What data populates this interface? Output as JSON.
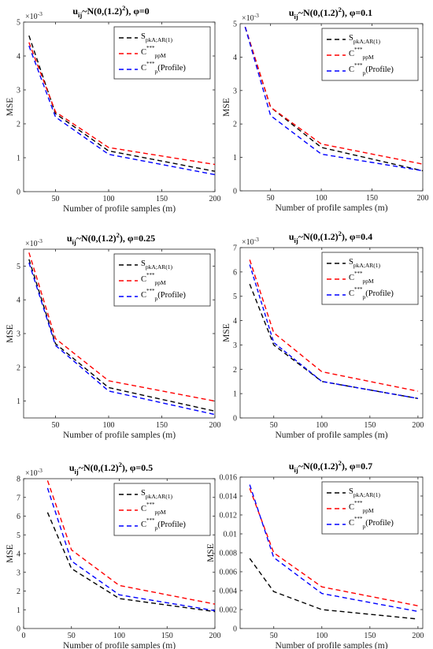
{
  "colors": {
    "series_1": "#000000",
    "series_2": "#ff0000",
    "series_3": "#0000ff"
  },
  "chart_data": [
    {
      "type": "line",
      "title": {
        "base": "u",
        "sub": "ij",
        "mid": "~N(0,(1.2)",
        "sup": "2",
        "end": "), φ=0"
      },
      "xlabel": "Number of profile samples (m)",
      "ylabel": "MSE",
      "multiplier": {
        "base": "×10",
        "exp": "-3"
      },
      "xlim": [
        20,
        200
      ],
      "ylim": [
        0,
        5
      ],
      "xticks": [
        "50",
        "100",
        "150",
        "200"
      ],
      "xtick_values": [
        50,
        100,
        150,
        200
      ],
      "yticks": [
        "0",
        "1",
        "2",
        "3",
        "4",
        "5"
      ],
      "ytick_values": [
        0,
        1,
        2,
        3,
        4,
        5
      ],
      "legend": "top-right",
      "x": [
        25,
        50,
        100,
        200
      ],
      "series": [
        {
          "legend": {
            "base": "S",
            "sub": "pkA;AR(1)",
            "sup": "",
            "suffix": ""
          },
          "color": "#000000",
          "values": [
            4.6,
            2.3,
            1.2,
            0.6
          ]
        },
        {
          "legend": {
            "base": "C",
            "sub": "ppM",
            "sup": "***",
            "suffix": ""
          },
          "color": "#ff0000",
          "values": [
            4.4,
            2.35,
            1.3,
            0.8
          ]
        },
        {
          "legend": {
            "base": "C",
            "sub": "p",
            "sup": "***",
            "suffix": "(Profile)"
          },
          "color": "#0000ff",
          "values": [
            4.3,
            2.2,
            1.1,
            0.5
          ]
        }
      ]
    },
    {
      "type": "line",
      "title": {
        "base": "u",
        "sub": "ij",
        "mid": "~N(0,(1.2)",
        "sup": "2",
        "end": "), φ=0.1"
      },
      "xlabel": "Number of profile samples (m)",
      "ylabel": "MSE",
      "multiplier": {
        "base": "×10",
        "exp": "-3"
      },
      "xlim": [
        20,
        200
      ],
      "ylim": [
        0,
        5
      ],
      "xticks": [
        "50",
        "100",
        "150",
        "200"
      ],
      "xtick_values": [
        50,
        100,
        150,
        200
      ],
      "yticks": [
        "0",
        "1",
        "2",
        "3",
        "4",
        "5"
      ],
      "ytick_values": [
        0,
        1,
        2,
        3,
        4,
        5
      ],
      "legend": "top-right",
      "x": [
        25,
        50,
        100,
        200
      ],
      "series": [
        {
          "legend": {
            "base": "S",
            "sub": "pkA;AR(1)",
            "sup": "",
            "suffix": ""
          },
          "color": "#000000",
          "values": [
            4.9,
            2.5,
            1.3,
            0.6
          ]
        },
        {
          "legend": {
            "base": "C",
            "sub": "ppM",
            "sup": "***",
            "suffix": ""
          },
          "color": "#ff0000",
          "values": [
            4.9,
            2.5,
            1.4,
            0.8
          ]
        },
        {
          "legend": {
            "base": "C",
            "sub": "p",
            "sup": "***",
            "suffix": "(Profile)"
          },
          "color": "#0000ff",
          "values": [
            4.9,
            2.25,
            1.1,
            0.6
          ]
        }
      ]
    },
    {
      "type": "line",
      "title": {
        "base": "u",
        "sub": "ij",
        "mid": "~N(0,(1.2)",
        "sup": "2",
        "end": "), φ=0.25"
      },
      "xlabel": "Number of profile samples (m)",
      "ylabel": "MSE",
      "multiplier": {
        "base": "×10",
        "exp": "-3"
      },
      "xlim": [
        20,
        200
      ],
      "ylim": [
        0.5,
        5.5
      ],
      "xticks": [
        "50",
        "100",
        "150",
        "200"
      ],
      "xtick_values": [
        50,
        100,
        150,
        200
      ],
      "yticks": [
        "1",
        "2",
        "3",
        "4",
        "5"
      ],
      "ytick_values": [
        1,
        2,
        3,
        4,
        5
      ],
      "legend": "top-right",
      "x": [
        25,
        50,
        100,
        200
      ],
      "series": [
        {
          "legend": {
            "base": "S",
            "sub": "pkA;AR(1)",
            "sup": "",
            "suffix": ""
          },
          "color": "#000000",
          "values": [
            5.2,
            2.7,
            1.4,
            0.7
          ]
        },
        {
          "legend": {
            "base": "C",
            "sub": "ppM",
            "sup": "***",
            "suffix": ""
          },
          "color": "#ff0000",
          "values": [
            5.4,
            2.85,
            1.6,
            1.0
          ]
        },
        {
          "legend": {
            "base": "C",
            "sub": "p",
            "sup": "***",
            "suffix": "(Profile)"
          },
          "color": "#0000ff",
          "values": [
            5.1,
            2.65,
            1.3,
            0.6
          ]
        }
      ]
    },
    {
      "type": "line",
      "title": {
        "base": "u",
        "sub": "ij",
        "mid": "~N(0,(1.2)",
        "sup": "2",
        "end": "), φ=0.4"
      },
      "xlabel": "Number of profile samples (m)",
      "ylabel": "MSE",
      "multiplier": {
        "base": "×10",
        "exp": "-3"
      },
      "xlim": [
        15,
        205
      ],
      "ylim": [
        0,
        7
      ],
      "xticks": [
        "50",
        "100",
        "150",
        "200"
      ],
      "xtick_values": [
        50,
        100,
        150,
        200
      ],
      "yticks": [
        "0",
        "1",
        "2",
        "3",
        "4",
        "5",
        "6",
        "7"
      ],
      "ytick_values": [
        0,
        1,
        2,
        3,
        4,
        5,
        6,
        7
      ],
      "legend": "top-right",
      "x": [
        25,
        50,
        100,
        200
      ],
      "series": [
        {
          "legend": {
            "base": "S",
            "sub": "pkA;AR(1)",
            "sup": "",
            "suffix": ""
          },
          "color": "#000000",
          "values": [
            5.5,
            3.0,
            1.5,
            0.8
          ]
        },
        {
          "legend": {
            "base": "C",
            "sub": "ppM",
            "sup": "***",
            "suffix": ""
          },
          "color": "#ff0000",
          "values": [
            6.5,
            3.5,
            1.9,
            1.1
          ]
        },
        {
          "legend": {
            "base": "C",
            "sub": "p",
            "sup": "***",
            "suffix": "(Profile)"
          },
          "color": "#0000ff",
          "values": [
            6.3,
            3.1,
            1.5,
            0.8
          ]
        }
      ]
    },
    {
      "type": "line",
      "title": {
        "base": "u",
        "sub": "ij",
        "mid": "~N(0,(1.2)",
        "sup": "2",
        "end": "), φ=0.5"
      },
      "xlabel": "Number of profile samples (m)",
      "ylabel": "MSE",
      "multiplier": {
        "base": "×10",
        "exp": "-3"
      },
      "xlim": [
        0,
        200
      ],
      "ylim": [
        0,
        8
      ],
      "xticks": [
        "0",
        "50",
        "100",
        "150",
        "200"
      ],
      "xtick_values": [
        0,
        50,
        100,
        150,
        200
      ],
      "yticks": [
        "0",
        "1",
        "2",
        "3",
        "4",
        "5",
        "6",
        "7",
        "8"
      ],
      "ytick_values": [
        0,
        1,
        2,
        3,
        4,
        5,
        6,
        7,
        8
      ],
      "legend": "top-right",
      "x": [
        25,
        50,
        100,
        200
      ],
      "series": [
        {
          "legend": {
            "base": "S",
            "sub": "pkA;AR(1)",
            "sup": "",
            "suffix": ""
          },
          "color": "#000000",
          "values": [
            6.2,
            3.2,
            1.6,
            0.9
          ]
        },
        {
          "legend": {
            "base": "C",
            "sub": "ppM",
            "sup": "***",
            "suffix": ""
          },
          "color": "#ff0000",
          "values": [
            7.9,
            4.2,
            2.3,
            1.3
          ]
        },
        {
          "legend": {
            "base": "C",
            "sub": "p",
            "sup": "***",
            "suffix": "(Profile)"
          },
          "color": "#0000ff",
          "values": [
            7.5,
            3.6,
            1.8,
            0.95
          ]
        }
      ]
    },
    {
      "type": "line",
      "title": {
        "base": "u",
        "sub": "ij",
        "mid": "~N(0,(1.2)",
        "sup": "2",
        "end": "), φ=0.7"
      },
      "xlabel": "Number of profile samples (m)",
      "ylabel": "MSE",
      "multiplier": null,
      "xlim": [
        15,
        205
      ],
      "ylim": [
        0,
        0.016
      ],
      "xticks": [
        "50",
        "100",
        "150",
        "200"
      ],
      "xtick_values": [
        50,
        100,
        150,
        200
      ],
      "yticks": [
        "0",
        "0.002",
        "0.004",
        "0.006",
        "0.008",
        "0.01",
        "0.012",
        "0.014",
        "0.016"
      ],
      "ytick_values": [
        0,
        0.002,
        0.004,
        0.006,
        0.008,
        0.01,
        0.012,
        0.014,
        0.016
      ],
      "legend": "top-right",
      "x": [
        25,
        50,
        100,
        200
      ],
      "series": [
        {
          "legend": {
            "base": "S",
            "sub": "pkA;AR(1)",
            "sup": "",
            "suffix": ""
          },
          "color": "#000000",
          "values": [
            0.0074,
            0.0039,
            0.002,
            0.001
          ]
        },
        {
          "legend": {
            "base": "C",
            "sub": "ppM",
            "sup": "***",
            "suffix": ""
          },
          "color": "#ff0000",
          "values": [
            0.0148,
            0.008,
            0.0044,
            0.0024
          ]
        },
        {
          "legend": {
            "base": "C",
            "sub": "p",
            "sup": "***",
            "suffix": "(Profile)"
          },
          "color": "#0000ff",
          "values": [
            0.0152,
            0.0075,
            0.0037,
            0.0018
          ]
        }
      ]
    }
  ]
}
